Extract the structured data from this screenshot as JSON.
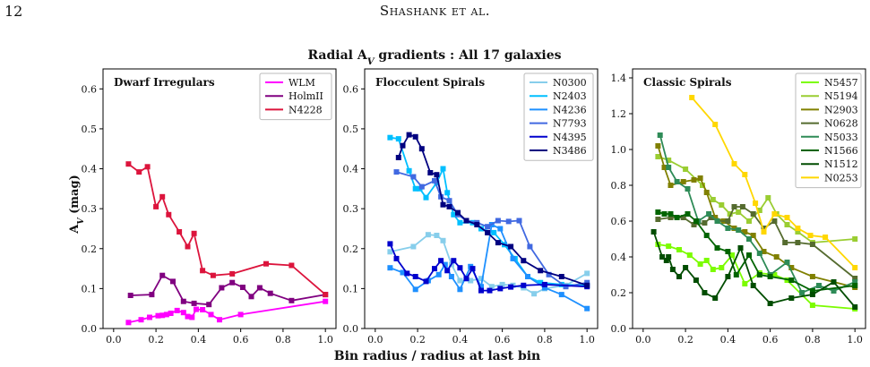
{
  "page": {
    "number": "12",
    "running_head": "Shashank et al."
  },
  "figure": {
    "suptitle": "Radial A_V gradients : All 17 galaxies",
    "xlabel": "Bin radius / radius at last bin",
    "ylabel": "A_V (mag)"
  },
  "chart_data": [
    {
      "type": "line",
      "title": "Dwarf Irregulars",
      "xlim": [
        -0.05,
        1.05
      ],
      "ylim": [
        0,
        0.65
      ],
      "xticks": [
        "0.0",
        "0.2",
        "0.4",
        "0.6",
        "0.8",
        "1.0"
      ],
      "yticks": [
        "0.0",
        "0.1",
        "0.2",
        "0.3",
        "0.4",
        "0.5",
        "0.6"
      ],
      "legend_position": "top-right",
      "series": [
        {
          "name": "WLM",
          "color": "#ff00ff",
          "x": [
            0.07,
            0.13,
            0.17,
            0.21,
            0.23,
            0.25,
            0.27,
            0.3,
            0.33,
            0.35,
            0.37,
            0.39,
            0.42,
            0.46,
            0.5,
            0.6,
            1.0
          ],
          "y": [
            0.015,
            0.022,
            0.028,
            0.032,
            0.033,
            0.035,
            0.038,
            0.045,
            0.04,
            0.03,
            0.028,
            0.048,
            0.047,
            0.035,
            0.022,
            0.035,
            0.068
          ]
        },
        {
          "name": "HolmII",
          "color": "#800080",
          "x": [
            0.08,
            0.18,
            0.23,
            0.28,
            0.33,
            0.38,
            0.45,
            0.51,
            0.56,
            0.61,
            0.65,
            0.69,
            0.74,
            0.84,
            1.0
          ],
          "y": [
            0.083,
            0.085,
            0.133,
            0.118,
            0.068,
            0.063,
            0.06,
            0.102,
            0.115,
            0.103,
            0.08,
            0.102,
            0.088,
            0.07,
            0.085
          ]
        },
        {
          "name": "N4228",
          "color": "#dc143c",
          "x": [
            0.07,
            0.12,
            0.16,
            0.2,
            0.23,
            0.26,
            0.31,
            0.35,
            0.38,
            0.42,
            0.47,
            0.56,
            0.72,
            0.84,
            1.0
          ],
          "y": [
            0.412,
            0.392,
            0.405,
            0.305,
            0.33,
            0.285,
            0.242,
            0.205,
            0.238,
            0.145,
            0.133,
            0.137,
            0.162,
            0.158,
            0.085
          ]
        }
      ]
    },
    {
      "type": "line",
      "title": "Flocculent Spirals",
      "xlim": [
        -0.05,
        1.05
      ],
      "ylim": [
        0,
        0.65
      ],
      "xticks": [
        "0.0",
        "0.2",
        "0.4",
        "0.6",
        "0.8",
        "1.0"
      ],
      "yticks": [
        "0.0",
        "0.1",
        "0.2",
        "0.3",
        "0.4",
        "0.5",
        "0.6"
      ],
      "legend_position": "top-right",
      "series": [
        {
          "name": "N0300",
          "color": "#87ceeb",
          "x": [
            0.07,
            0.18,
            0.25,
            0.29,
            0.32,
            0.36,
            0.4,
            0.45,
            0.5,
            0.55,
            0.6,
            0.65,
            0.7,
            0.75,
            0.8,
            0.9,
            1.0
          ],
          "y": [
            0.192,
            0.205,
            0.235,
            0.233,
            0.22,
            0.16,
            0.12,
            0.12,
            0.125,
            0.105,
            0.11,
            0.108,
            0.102,
            0.087,
            0.1,
            0.108,
            0.138
          ]
        },
        {
          "name": "N2403",
          "color": "#00bfff",
          "x": [
            0.07,
            0.11,
            0.16,
            0.19,
            0.21,
            0.24,
            0.29,
            0.32,
            0.34,
            0.37,
            0.4,
            0.46,
            0.5,
            0.56,
            0.61,
            0.66,
            0.72,
            0.78,
            0.88,
            1.0
          ],
          "y": [
            0.478,
            0.475,
            0.395,
            0.35,
            0.35,
            0.328,
            0.365,
            0.4,
            0.34,
            0.285,
            0.265,
            0.265,
            0.25,
            0.24,
            0.21,
            0.175,
            0.13,
            0.115,
            0.11,
            0.108
          ]
        },
        {
          "name": "N4236",
          "color": "#1e90ff",
          "x": [
            0.07,
            0.13,
            0.19,
            0.25,
            0.3,
            0.33,
            0.36,
            0.4,
            0.45,
            0.5,
            0.55,
            0.59,
            0.65,
            0.72,
            0.8,
            0.88,
            1.0
          ],
          "y": [
            0.152,
            0.14,
            0.098,
            0.12,
            0.135,
            0.16,
            0.13,
            0.098,
            0.155,
            0.105,
            0.26,
            0.25,
            0.175,
            0.13,
            0.102,
            0.085,
            0.05
          ]
        },
        {
          "name": "N7793",
          "color": "#4169e1",
          "x": [
            0.1,
            0.18,
            0.22,
            0.28,
            0.31,
            0.35,
            0.39,
            0.43,
            0.48,
            0.53,
            0.58,
            0.63,
            0.68,
            0.73,
            0.82,
            0.9,
            1.0
          ],
          "y": [
            0.392,
            0.38,
            0.355,
            0.37,
            0.33,
            0.32,
            0.285,
            0.27,
            0.265,
            0.255,
            0.27,
            0.268,
            0.27,
            0.205,
            0.135,
            0.105,
            0.115
          ]
        },
        {
          "name": "N4395",
          "color": "#0000cd",
          "x": [
            0.07,
            0.1,
            0.15,
            0.19,
            0.24,
            0.28,
            0.31,
            0.34,
            0.37,
            0.4,
            0.43,
            0.46,
            0.5,
            0.54,
            0.59,
            0.64,
            0.7,
            0.8,
            1.0
          ],
          "y": [
            0.212,
            0.175,
            0.138,
            0.13,
            0.118,
            0.15,
            0.17,
            0.145,
            0.17,
            0.152,
            0.125,
            0.15,
            0.095,
            0.095,
            0.1,
            0.104,
            0.108,
            0.11,
            0.105
          ]
        },
        {
          "name": "N3486",
          "color": "#000080",
          "x": [
            0.11,
            0.13,
            0.16,
            0.19,
            0.22,
            0.26,
            0.29,
            0.32,
            0.35,
            0.39,
            0.43,
            0.48,
            0.53,
            0.58,
            0.64,
            0.7,
            0.78,
            0.88,
            1.0
          ],
          "y": [
            0.428,
            0.458,
            0.485,
            0.48,
            0.45,
            0.39,
            0.385,
            0.31,
            0.305,
            0.29,
            0.27,
            0.26,
            0.24,
            0.215,
            0.205,
            0.17,
            0.145,
            0.13,
            0.108
          ]
        }
      ]
    },
    {
      "type": "line",
      "title": "Classic Spirals",
      "xlim": [
        -0.05,
        1.05
      ],
      "ylim": [
        0,
        1.45
      ],
      "xticks": [
        "0.0",
        "0.2",
        "0.4",
        "0.6",
        "0.8",
        "1.0"
      ],
      "yticks": [
        "0.0",
        "0.2",
        "0.4",
        "0.6",
        "0.8",
        "1.0",
        "1.2",
        "1.4"
      ],
      "legend_position": "top-right",
      "series": [
        {
          "name": "N5457",
          "color": "#7cfc00",
          "x": [
            0.07,
            0.12,
            0.17,
            0.22,
            0.27,
            0.3,
            0.33,
            0.37,
            0.42,
            0.48,
            0.55,
            0.62,
            0.68,
            0.8,
            1.0
          ],
          "y": [
            0.47,
            0.46,
            0.44,
            0.41,
            0.36,
            0.38,
            0.33,
            0.34,
            0.41,
            0.25,
            0.31,
            0.3,
            0.27,
            0.13,
            0.11
          ]
        },
        {
          "name": "N5194",
          "color": "#9acd32",
          "x": [
            0.07,
            0.12,
            0.2,
            0.28,
            0.33,
            0.37,
            0.41,
            0.45,
            0.5,
            0.55,
            0.59,
            0.63,
            0.68,
            0.73,
            0.8,
            1.0
          ],
          "y": [
            0.96,
            0.94,
            0.89,
            0.8,
            0.72,
            0.69,
            0.64,
            0.65,
            0.6,
            0.66,
            0.73,
            0.64,
            0.58,
            0.54,
            0.48,
            0.5
          ]
        },
        {
          "name": "N2903",
          "color": "#808000",
          "x": [
            0.07,
            0.1,
            0.13,
            0.19,
            0.24,
            0.27,
            0.3,
            0.34,
            0.38,
            0.43,
            0.48,
            0.52,
            0.57,
            0.63,
            0.7,
            0.8,
            1.0
          ],
          "y": [
            1.02,
            0.9,
            0.8,
            0.82,
            0.83,
            0.84,
            0.76,
            0.62,
            0.6,
            0.56,
            0.54,
            0.52,
            0.43,
            0.4,
            0.34,
            0.29,
            0.23
          ]
        },
        {
          "name": "N0628",
          "color": "#556b2f",
          "x": [
            0.07,
            0.13,
            0.19,
            0.24,
            0.29,
            0.32,
            0.35,
            0.4,
            0.43,
            0.47,
            0.52,
            0.57,
            0.62,
            0.67,
            0.73,
            0.8,
            1.0
          ],
          "y": [
            0.61,
            0.62,
            0.62,
            0.58,
            0.59,
            0.62,
            0.6,
            0.6,
            0.68,
            0.68,
            0.64,
            0.56,
            0.6,
            0.48,
            0.48,
            0.47,
            0.28
          ]
        },
        {
          "name": "N5033",
          "color": "#2e8b57",
          "x": [
            0.08,
            0.12,
            0.16,
            0.21,
            0.26,
            0.31,
            0.35,
            0.4,
            0.45,
            0.5,
            0.55,
            0.6,
            0.68,
            0.75,
            0.83,
            0.9,
            1.0
          ],
          "y": [
            1.08,
            0.9,
            0.82,
            0.78,
            0.6,
            0.64,
            0.6,
            0.56,
            0.55,
            0.5,
            0.42,
            0.3,
            0.37,
            0.2,
            0.24,
            0.21,
            0.26
          ]
        },
        {
          "name": "N1566",
          "color": "#006400",
          "x": [
            0.07,
            0.1,
            0.13,
            0.16,
            0.21,
            0.25,
            0.3,
            0.35,
            0.4,
            0.44,
            0.5,
            0.55,
            0.6,
            0.7,
            0.8,
            1.0
          ],
          "y": [
            0.65,
            0.64,
            0.64,
            0.62,
            0.64,
            0.6,
            0.52,
            0.45,
            0.43,
            0.3,
            0.41,
            0.3,
            0.29,
            0.27,
            0.21,
            0.24
          ]
        },
        {
          "name": "N1512",
          "color": "#004d00",
          "x": [
            0.05,
            0.09,
            0.11,
            0.12,
            0.14,
            0.17,
            0.2,
            0.25,
            0.29,
            0.34,
            0.4,
            0.46,
            0.52,
            0.6,
            0.7,
            0.8,
            0.9,
            1.0
          ],
          "y": [
            0.54,
            0.4,
            0.38,
            0.4,
            0.33,
            0.29,
            0.34,
            0.27,
            0.2,
            0.17,
            0.29,
            0.45,
            0.24,
            0.14,
            0.17,
            0.19,
            0.26,
            0.12
          ]
        },
        {
          "name": "N0253",
          "color": "#ffd700",
          "x": [
            0.23,
            0.34,
            0.43,
            0.48,
            0.53,
            0.57,
            0.62,
            0.68,
            0.73,
            0.79,
            0.86,
            1.0
          ],
          "y": [
            1.29,
            1.14,
            0.92,
            0.86,
            0.7,
            0.54,
            0.64,
            0.62,
            0.56,
            0.52,
            0.51,
            0.34
          ]
        }
      ]
    }
  ]
}
